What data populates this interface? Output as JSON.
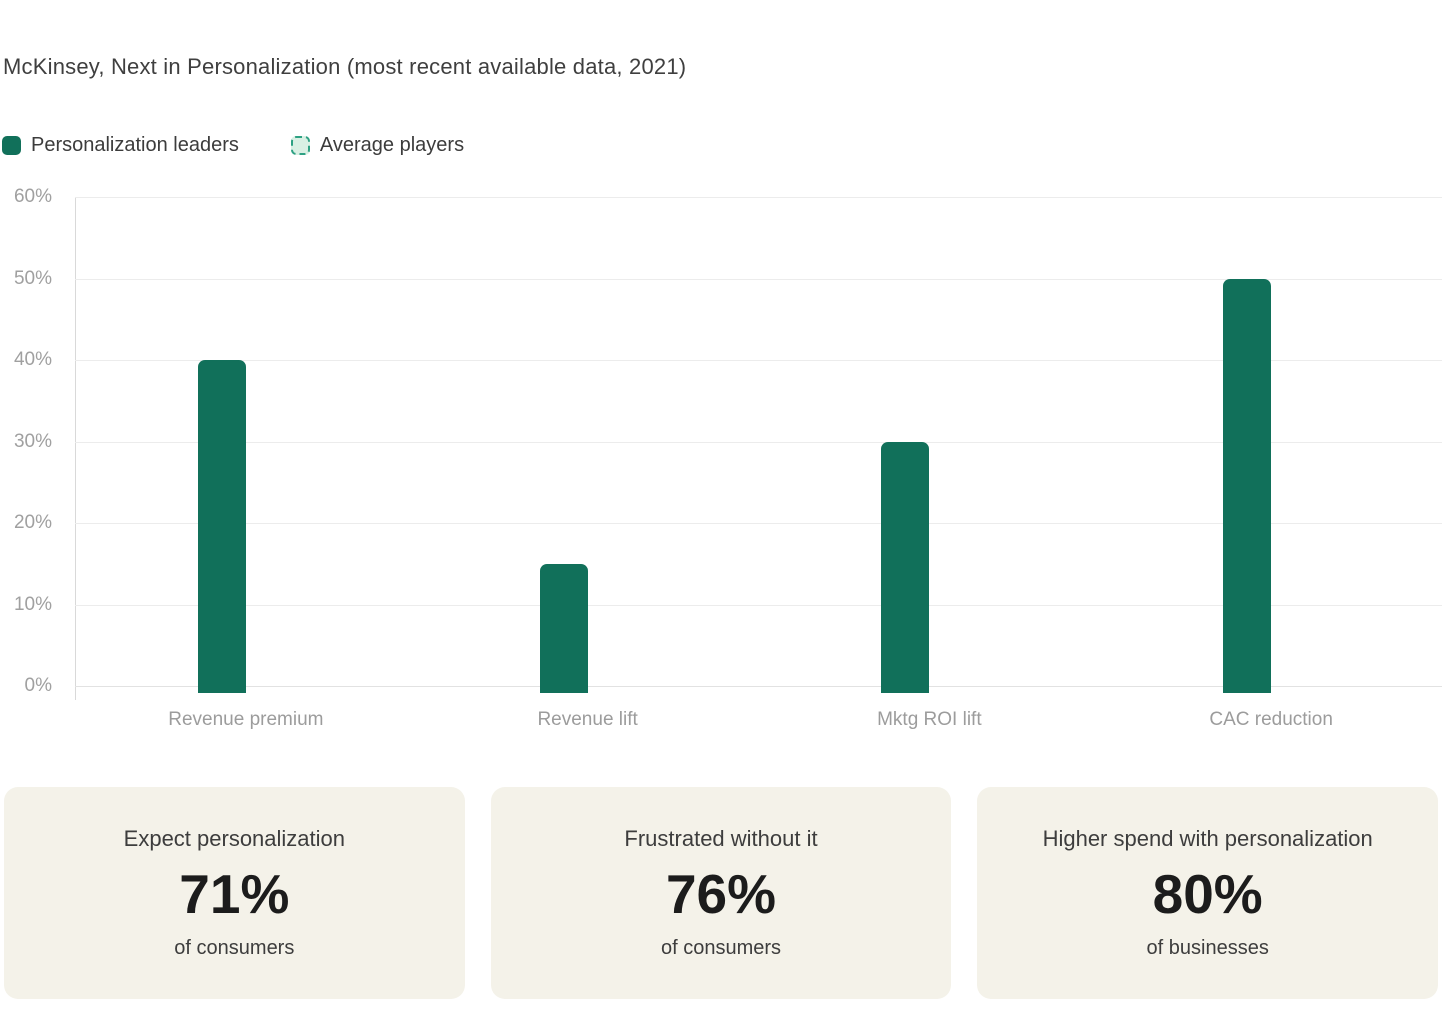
{
  "title": "McKinsey, Next in Personalization (most recent available data, 2021)",
  "legend": {
    "items": [
      {
        "label": "Personalization leaders",
        "style": "solid",
        "color": "#11705a"
      },
      {
        "label": "Average players",
        "style": "dashed",
        "fill": "#d9f0e4",
        "border": "#2ea183"
      }
    ]
  },
  "chart_data": {
    "type": "bar",
    "title": "McKinsey, Next in Personalization (most recent available data, 2021)",
    "categories": [
      "Revenue premium",
      "Revenue lift",
      "Mktg ROI lift",
      "CAC reduction"
    ],
    "series": [
      {
        "name": "Personalization leaders",
        "values": [
          40,
          15,
          30,
          50
        ],
        "color": "#11705a"
      },
      {
        "name": "Average players",
        "values": [
          0,
          0,
          0,
          0
        ],
        "color": "#d9f0e4"
      }
    ],
    "xlabel": "",
    "ylabel": "",
    "ylim": [
      0,
      60
    ],
    "ytick_labels": [
      "0%",
      "10%",
      "20%",
      "30%",
      "40%",
      "50%",
      "60%"
    ],
    "grid": true,
    "legend_position": "top-left"
  },
  "cards": [
    {
      "title": "Expect personalization",
      "value": "71%",
      "subtitle": "of consumers"
    },
    {
      "title": "Frustrated without it",
      "value": "76%",
      "subtitle": "of consumers"
    },
    {
      "title": "Higher spend with personalization",
      "value": "80%",
      "subtitle": "of businesses"
    }
  ],
  "colors": {
    "bar": "#11705a",
    "card_background": "#f4f2e9",
    "axis_text": "#a0a0a0"
  }
}
